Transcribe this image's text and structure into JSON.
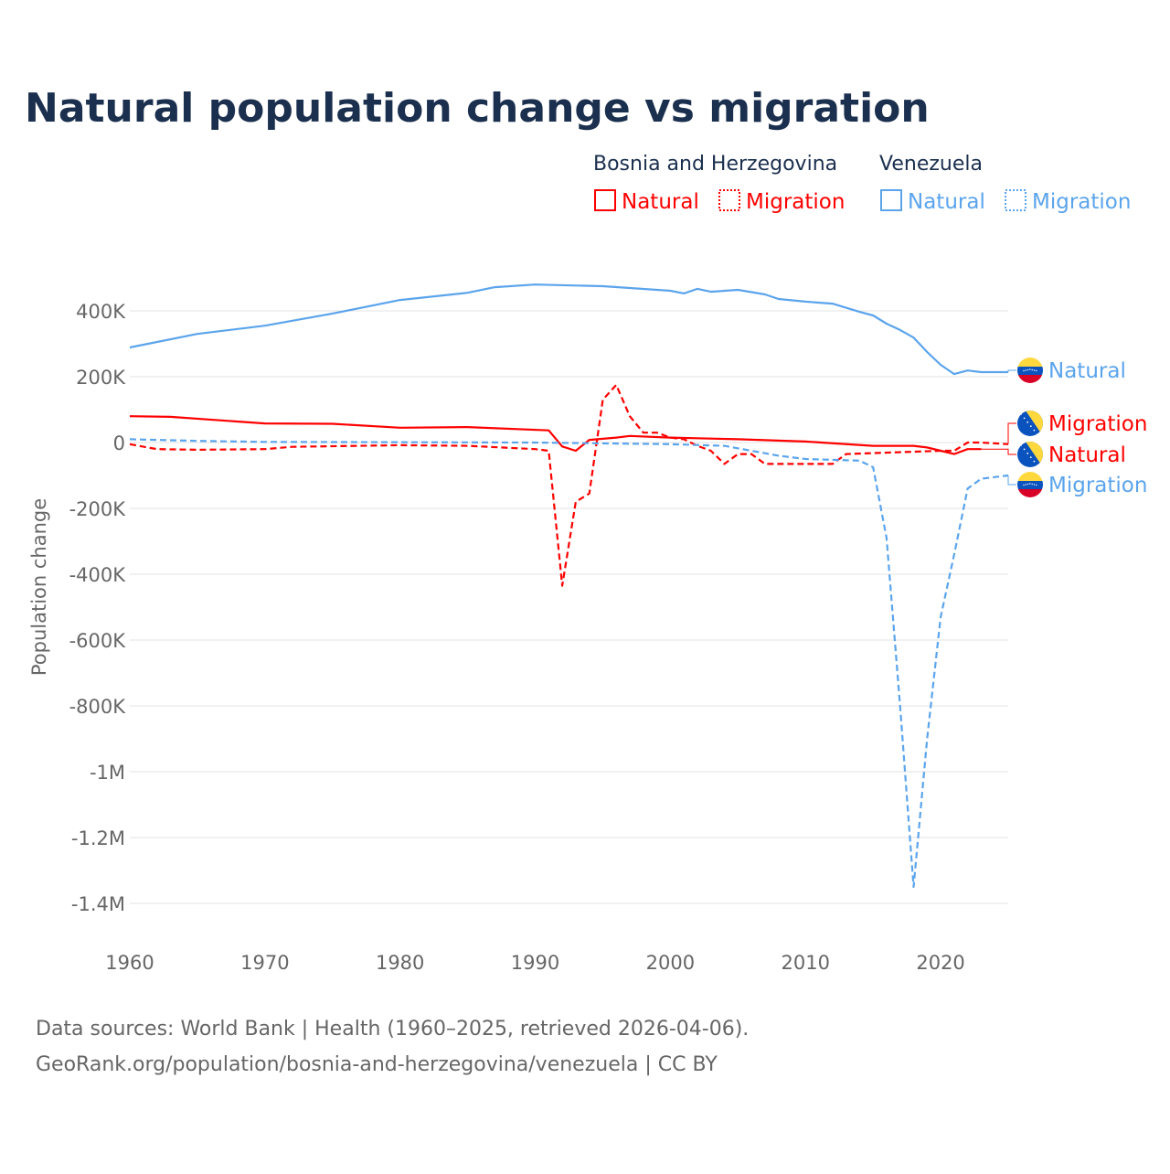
{
  "chart_data": {
    "type": "line",
    "title": "Natural population change vs migration",
    "xlabel": "",
    "ylabel": "Population change",
    "xlim": [
      1960,
      2025
    ],
    "ylim": [
      -1500000,
      500000
    ],
    "x_ticks": [
      "1960",
      "1970",
      "1980",
      "1990",
      "2000",
      "2010",
      "2020"
    ],
    "x_tick_values": [
      1960,
      1970,
      1980,
      1990,
      2000,
      2010,
      2020
    ],
    "y_ticks": [
      "400K",
      "200K",
      "0",
      "-200K",
      "-400K",
      "-600K",
      "-800K",
      "-1M",
      "-1.2M",
      "-1.4M"
    ],
    "y_tick_values": [
      400000,
      200000,
      0,
      -200000,
      -400000,
      -600000,
      -800000,
      -1000000,
      -1200000,
      -1400000
    ],
    "grid": true,
    "legend": {
      "position": "top-right",
      "groups": [
        {
          "country": "Bosnia and Herzegovina",
          "items": [
            "Natural",
            "Migration"
          ]
        },
        {
          "country": "Venezuela",
          "items": [
            "Natural",
            "Migration"
          ]
        }
      ]
    },
    "series": [
      {
        "name": "Venezuela Natural",
        "country": "Venezuela",
        "kind": "Natural",
        "label": "Natural",
        "color": "#5ba4ec",
        "dash": false,
        "flag": "venezuela",
        "x": [
          1960,
          1965,
          1970,
          1975,
          1980,
          1985,
          1987,
          1990,
          1995,
          2000,
          2001,
          2002,
          2003,
          2005,
          2007,
          2008,
          2010,
          2012,
          2014,
          2015,
          2016,
          2017,
          2018,
          2019,
          2020,
          2021,
          2022,
          2023,
          2025
        ],
        "y": [
          289000,
          330000,
          355000,
          392000,
          433000,
          455000,
          472000,
          480000,
          475000,
          461000,
          453000,
          467000,
          458000,
          464000,
          450000,
          436000,
          428000,
          422000,
          397000,
          386000,
          361000,
          342000,
          319000,
          275000,
          236000,
          208000,
          219000,
          214000,
          214000
        ]
      },
      {
        "name": "Bosnia and Herzegovina Migration",
        "country": "Bosnia and Herzegovina",
        "kind": "Migration",
        "label": "Migration",
        "color": "#ff0000",
        "dash": true,
        "flag": "bosnia",
        "x": [
          1960,
          1962,
          1965,
          1970,
          1972,
          1980,
          1985,
          1990,
          1991,
          1992,
          1993,
          1994,
          1995,
          1996,
          1997,
          1998,
          1999,
          2000,
          2001,
          2002,
          2003,
          2004,
          2005,
          2006,
          2007,
          2010,
          2012,
          2013,
          2020,
          2021,
          2022,
          2023,
          2025
        ],
        "y": [
          -5000,
          -20000,
          -22000,
          -20000,
          -13000,
          -8000,
          -10000,
          -20000,
          -25000,
          -435000,
          -180000,
          -155000,
          130000,
          175000,
          80000,
          30000,
          30000,
          15000,
          10000,
          -10000,
          -25000,
          -65000,
          -35000,
          -35000,
          -65000,
          -65000,
          -65000,
          -35000,
          -25000,
          -25000,
          0,
          0,
          -5000
        ]
      },
      {
        "name": "Bosnia and Herzegovina Natural",
        "country": "Bosnia and Herzegovina",
        "kind": "Natural",
        "label": "Natural",
        "color": "#ff0000",
        "dash": false,
        "flag": "bosnia",
        "x": [
          1960,
          1963,
          1970,
          1975,
          1980,
          1985,
          1991,
          1992,
          1993,
          1994,
          1996,
          1997,
          2000,
          2005,
          2010,
          2015,
          2018,
          2019,
          2020,
          2021,
          2022,
          2023
        ],
        "y": [
          80000,
          78000,
          58000,
          57000,
          45000,
          47000,
          37000,
          -12000,
          -25000,
          8000,
          15000,
          20000,
          15000,
          10000,
          3000,
          -10000,
          -10000,
          -15000,
          -25000,
          -35000,
          -20000,
          -20000
        ]
      },
      {
        "name": "Venezuela Migration",
        "country": "Venezuela",
        "kind": "Migration",
        "label": "Migration",
        "color": "#5ba4ec",
        "dash": true,
        "flag": "venezuela",
        "x": [
          1960,
          1965,
          1970,
          1990,
          2000,
          2004,
          2006,
          2008,
          2010,
          2014,
          2015,
          2016,
          2017,
          2018,
          2019,
          2020,
          2021,
          2022,
          2023,
          2025
        ],
        "y": [
          10000,
          5000,
          2000,
          0,
          -5000,
          -10000,
          -25000,
          -40000,
          -50000,
          -55000,
          -75000,
          -290000,
          -800000,
          -1350000,
          -900000,
          -530000,
          -340000,
          -140000,
          -110000,
          -100000
        ]
      }
    ]
  },
  "footer": {
    "line1": "Data sources: World Bank | Health (1960–2025, retrieved 2026-04-06).",
    "line2": "GeoRank.org/population/bosnia-and-herzegovina/venezuela | CC BY"
  }
}
